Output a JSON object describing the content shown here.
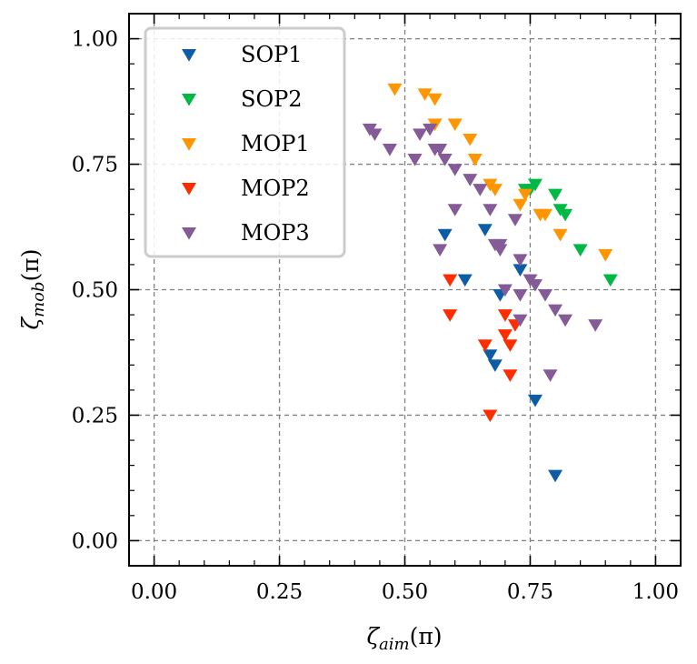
{
  "chart_data": {
    "type": "scatter",
    "marker": "triangle-down",
    "xlabel": "ζ_aim(π)",
    "ylabel": "ζ_mob(π)",
    "xlim": [
      -0.05,
      1.05
    ],
    "ylim": [
      -0.05,
      1.05
    ],
    "xticks": [
      0.0,
      0.25,
      0.5,
      0.75,
      1.0
    ],
    "yticks": [
      0.0,
      0.25,
      0.5,
      0.75,
      1.0
    ],
    "xtick_labels": [
      "0.00",
      "0.25",
      "0.50",
      "0.75",
      "1.00"
    ],
    "ytick_labels": [
      "0.00",
      "0.25",
      "0.50",
      "0.75",
      "1.00"
    ],
    "grid": true,
    "legend_position": "top-left",
    "series": [
      {
        "name": "SOP1",
        "color": "#0C5DA5",
        "x": [
          0.58,
          0.62,
          0.66,
          0.67,
          0.68,
          0.69,
          0.73,
          0.76,
          0.8
        ],
        "y": [
          0.61,
          0.52,
          0.62,
          0.37,
          0.35,
          0.49,
          0.54,
          0.28,
          0.13
        ]
      },
      {
        "name": "SOP2",
        "color": "#00B945",
        "x": [
          0.74,
          0.75,
          0.76,
          0.8,
          0.81,
          0.82,
          0.85,
          0.91
        ],
        "y": [
          0.7,
          0.7,
          0.71,
          0.69,
          0.66,
          0.65,
          0.58,
          0.52
        ]
      },
      {
        "name": "MOP1",
        "color": "#FF9500",
        "x": [
          0.48,
          0.54,
          0.56,
          0.56,
          0.6,
          0.63,
          0.64,
          0.67,
          0.68,
          0.73,
          0.74,
          0.77,
          0.78,
          0.81,
          0.9
        ],
        "y": [
          0.9,
          0.89,
          0.88,
          0.83,
          0.83,
          0.8,
          0.76,
          0.71,
          0.7,
          0.67,
          0.69,
          0.65,
          0.65,
          0.61,
          0.57
        ]
      },
      {
        "name": "MOP2",
        "color": "#FF2C00",
        "x": [
          0.59,
          0.59,
          0.66,
          0.67,
          0.7,
          0.7,
          0.71,
          0.71,
          0.72
        ],
        "y": [
          0.52,
          0.45,
          0.39,
          0.25,
          0.45,
          0.41,
          0.33,
          0.39,
          0.43
        ]
      },
      {
        "name": "MOP3",
        "color": "#845B97",
        "x": [
          0.43,
          0.44,
          0.47,
          0.52,
          0.53,
          0.55,
          0.56,
          0.57,
          0.58,
          0.6,
          0.6,
          0.63,
          0.65,
          0.67,
          0.68,
          0.69,
          0.69,
          0.7,
          0.72,
          0.73,
          0.73,
          0.75,
          0.76,
          0.78,
          0.8,
          0.82,
          0.57,
          0.79,
          0.88,
          0.73
        ],
        "y": [
          0.82,
          0.81,
          0.78,
          0.76,
          0.81,
          0.82,
          0.78,
          0.78,
          0.76,
          0.74,
          0.66,
          0.72,
          0.7,
          0.66,
          0.59,
          0.59,
          0.58,
          0.5,
          0.64,
          0.56,
          0.44,
          0.52,
          0.51,
          0.49,
          0.46,
          0.44,
          0.58,
          0.33,
          0.43,
          0.49
        ]
      }
    ]
  }
}
